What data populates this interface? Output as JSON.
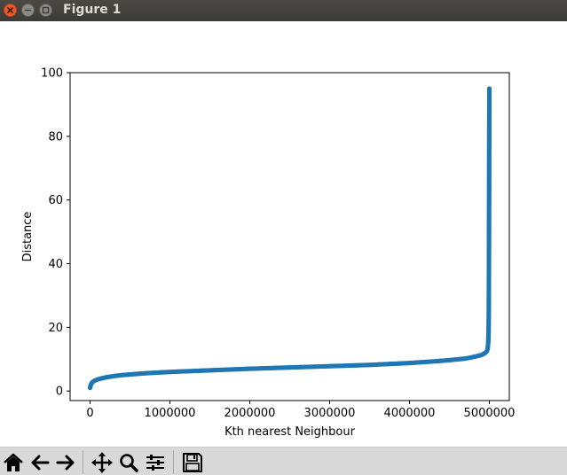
{
  "window": {
    "title": "Figure 1",
    "close_icon": "close-icon",
    "minimize_icon": "minimize-icon",
    "maximize_icon": "maximize-icon"
  },
  "toolbar": {
    "buttons": [
      {
        "name": "home-button",
        "icon": "home-icon"
      },
      {
        "name": "back-button",
        "icon": "arrow-left-icon"
      },
      {
        "name": "forward-button",
        "icon": "arrow-right-icon"
      },
      {
        "name": "pan-button",
        "icon": "move-icon"
      },
      {
        "name": "zoom-button",
        "icon": "magnifier-icon"
      },
      {
        "name": "subplots-button",
        "icon": "sliders-icon"
      },
      {
        "name": "save-button",
        "icon": "floppy-disk-icon"
      }
    ]
  },
  "chart_data": {
    "type": "scatter",
    "title": "",
    "xlabel": "Kth nearest Neighbour",
    "ylabel": "Distance",
    "xlim": [
      -250000,
      5250000
    ],
    "ylim": [
      -3,
      100
    ],
    "xticks": [
      0,
      1000000,
      2000000,
      3000000,
      4000000,
      5000000
    ],
    "xtick_labels": [
      "0",
      "1000000",
      "2000000",
      "3000000",
      "4000000",
      "5000000"
    ],
    "yticks": [
      0,
      20,
      40,
      60,
      80,
      100
    ],
    "ytick_labels": [
      "0",
      "20",
      "40",
      "60",
      "80",
      "100"
    ],
    "grid": false,
    "marker_color": "#1f77b4",
    "series": [
      {
        "x": [
          0,
          10000,
          30000,
          60000,
          100000,
          150000,
          200000,
          300000,
          400000,
          500000,
          700000,
          1000000,
          1500000,
          2000000,
          2500000,
          3000000,
          3500000,
          4000000,
          4300000,
          4500000,
          4700000,
          4800000,
          4900000,
          4950000,
          4970000,
          4980000,
          4985000,
          4990000,
          4993000,
          4995000,
          4997000,
          4998000,
          4999000,
          5000000
        ],
        "y": [
          1,
          2,
          2.8,
          3.3,
          3.7,
          4.0,
          4.3,
          4.7,
          5.0,
          5.2,
          5.6,
          6.0,
          6.5,
          7.0,
          7.4,
          7.8,
          8.2,
          8.8,
          9.3,
          9.7,
          10.2,
          10.7,
          11.3,
          12.0,
          12.5,
          13.5,
          15,
          18,
          25,
          40,
          60,
          75,
          85,
          95
        ]
      }
    ]
  }
}
